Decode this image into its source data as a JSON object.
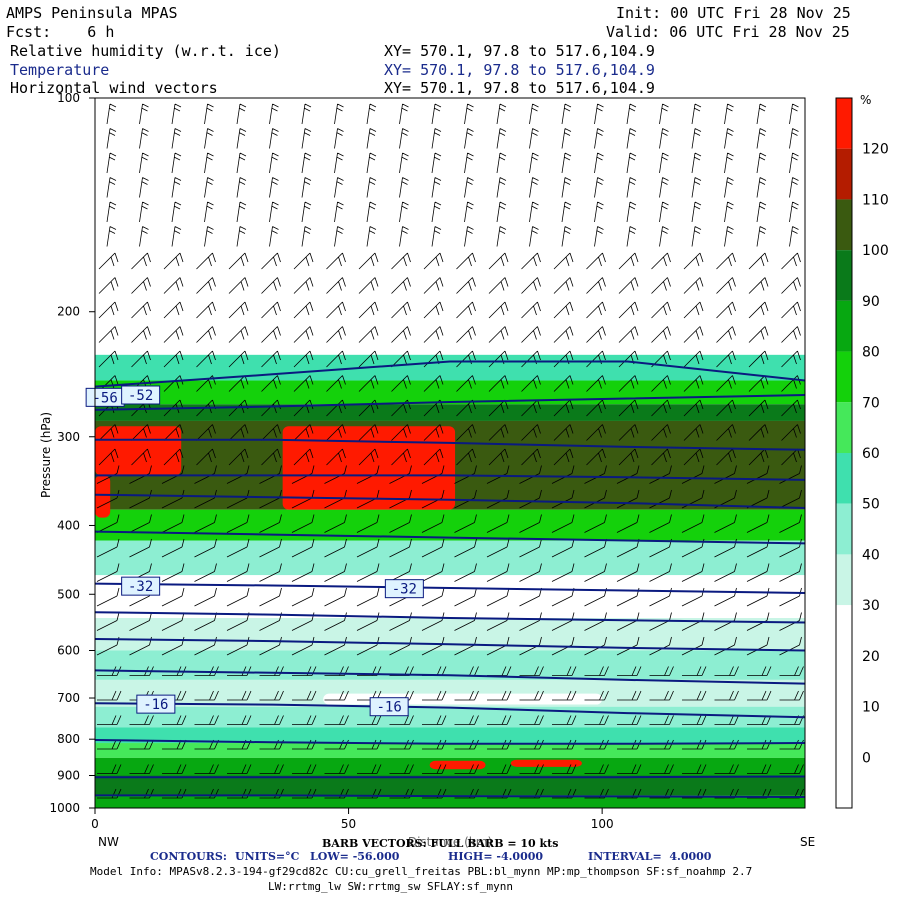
{
  "header": {
    "title": "AMPS Peninsula MPAS",
    "fcst": "Fcst:    6 h",
    "init": "Init: 00 UTC Fri 28 Nov 25",
    "valid": "Valid: 06 UTC Fri 28 Nov 25",
    "fields": [
      {
        "name": "Relative humidity (w.r.t. ice)",
        "xy": "XY= 570.1, 97.8 to 517.6,104.9"
      },
      {
        "name": "Temperature",
        "xy": "XY= 570.1, 97.8 to 517.6,104.9"
      },
      {
        "name": "Horizontal wind vectors",
        "xy": "XY= 570.1, 97.8 to 517.6,104.9"
      }
    ]
  },
  "colors": {
    "contour": "#0a1a80",
    "rh_bins": [
      "#ffffff",
      "#ffffff",
      "#ffffff",
      "#c9f5e6",
      "#8deed2",
      "#3fe0ae",
      "#45e85a",
      "#14d10b",
      "#07a811",
      "#0a7a1a",
      "#3a5a10",
      "#b41c00",
      "#ff1a00"
    ]
  },
  "chart_data": {
    "type": "heatmap",
    "subtype": "vertical cross-section",
    "xlabel": "Distance (km)",
    "ylabel": "Pressure (hPa)",
    "x_ticks": [
      0,
      50,
      100
    ],
    "x_range": [
      0,
      140
    ],
    "y_ticks": [
      100,
      200,
      300,
      400,
      500,
      600,
      700,
      800,
      900,
      1000
    ],
    "y_range": [
      100,
      1000
    ],
    "y_scale": "log",
    "left_label": "NW",
    "right_label": "SE",
    "colorbar": {
      "unit": "%",
      "ticks": [
        120,
        110,
        100,
        90,
        80,
        70,
        60,
        50,
        40,
        30,
        20,
        10,
        0
      ],
      "bin_edges": [
        -5,
        0,
        5,
        10,
        20,
        30,
        40,
        50,
        60,
        70,
        80,
        90,
        100,
        110,
        120,
        130
      ]
    },
    "rh_bands": [
      {
        "p_top": 230,
        "p_bot": 250,
        "level": 5
      },
      {
        "p_top": 250,
        "p_bot": 270,
        "level": 7
      },
      {
        "p_top": 270,
        "p_bot": 285,
        "level": 9
      },
      {
        "p_top": 285,
        "p_bot": 380,
        "level": 10
      },
      {
        "p_top": 380,
        "p_bot": 420,
        "level": 7
      },
      {
        "p_top": 420,
        "p_bot": 470,
        "level": 4
      },
      {
        "p_top": 470,
        "p_bot": 540,
        "level": 1
      },
      {
        "p_top": 540,
        "p_bot": 600,
        "level": 3
      },
      {
        "p_top": 600,
        "p_bot": 660,
        "level": 4
      },
      {
        "p_top": 660,
        "p_bot": 720,
        "level": 3
      },
      {
        "p_top": 720,
        "p_bot": 770,
        "level": 4
      },
      {
        "p_top": 770,
        "p_bot": 810,
        "level": 5
      },
      {
        "p_top": 810,
        "p_bot": 850,
        "level": 6
      },
      {
        "p_top": 850,
        "p_bot": 900,
        "level": 8
      },
      {
        "p_top": 900,
        "p_bot": 960,
        "level": 9
      },
      {
        "p_top": 960,
        "p_bot": 1000,
        "level": 8
      }
    ],
    "rh_patches": [
      {
        "x0": 0,
        "x1": 17,
        "p_top": 290,
        "p_bot": 340,
        "level": 12
      },
      {
        "x0": 0,
        "x1": 3,
        "p_top": 340,
        "p_bot": 390,
        "level": 12
      },
      {
        "x0": 37,
        "x1": 71,
        "p_top": 290,
        "p_bot": 380,
        "level": 12
      },
      {
        "x0": 66,
        "x1": 77,
        "p_top": 858,
        "p_bot": 882,
        "level": 12
      },
      {
        "x0": 82,
        "x1": 96,
        "p_top": 855,
        "p_bot": 875,
        "level": 12
      },
      {
        "x0": 20,
        "x1": 95,
        "p_top": 495,
        "p_bot": 530,
        "level": 0
      },
      {
        "x0": 45,
        "x1": 100,
        "p_top": 690,
        "p_bot": 715,
        "level": 2
      }
    ],
    "temperature_contours": [
      {
        "label": "-56",
        "p": [
          255,
          245,
          235,
          235,
          250
        ]
      },
      {
        "label": "-52",
        "p": [
          275,
          272,
          268,
          265,
          262
        ]
      },
      {
        "label": "-48",
        "p": [
          303,
          303,
          306,
          310,
          313
        ]
      },
      {
        "label": "-44",
        "p": [
          340,
          340,
          340,
          342,
          345
        ]
      },
      {
        "label": "-40",
        "p": [
          362,
          365,
          368,
          372,
          378
        ]
      },
      {
        "label": "-36",
        "p": [
          408,
          412,
          416,
          420,
          424
        ]
      },
      {
        "label": "-32",
        "p": [
          483,
          486,
          490,
          494,
          498
        ]
      },
      {
        "label": "-28",
        "p": [
          530,
          534,
          540,
          544,
          548
        ]
      },
      {
        "label": "-24",
        "p": [
          578,
          582,
          588,
          595,
          600
        ]
      },
      {
        "label": "-20",
        "p": [
          640,
          645,
          650,
          660,
          668
        ]
      },
      {
        "label": "-16",
        "p": [
          712,
          715,
          722,
          735,
          745
        ]
      },
      {
        "label": "-12",
        "p": [
          802,
          808,
          812,
          812,
          810
        ]
      },
      {
        "label": "-8",
        "p": [
          905,
          905,
          905,
          905,
          903
        ]
      },
      {
        "label": "-4",
        "p": [
          960,
          960,
          962,
          963,
          965
        ]
      }
    ],
    "contour_labels": [
      {
        "text": "-56",
        "x": 2,
        "p": 264
      },
      {
        "text": "-52",
        "x": 9,
        "p": 262
      },
      {
        "text": "-32",
        "x": 9,
        "p": 487
      },
      {
        "text": "-32",
        "x": 61,
        "p": 491
      },
      {
        "text": "-16",
        "x": 12,
        "p": 714
      },
      {
        "text": "-16",
        "x": 58,
        "p": 720
      }
    ],
    "barb_vector_note": "BARB VECTORS: FULL BARB = 10 kts",
    "contour_note": {
      "label": "CONTOURS:",
      "units": "UNITS=°C",
      "low": "LOW= -56.000",
      "high": "HIGH= -4.0000",
      "interval": "INTERVAL=  4.0000"
    }
  },
  "footer": {
    "model_info_1": "Model Info: MPASv8.2.3-194-gf29cd82c CU:cu_grell_freitas PBL:bl_mynn MP:mp_thompson SF:sf_noahmp 2.7",
    "model_info_2": "LW:rrtmg_lw SW:rrtmg_sw SFLAY:sf_mynn"
  }
}
